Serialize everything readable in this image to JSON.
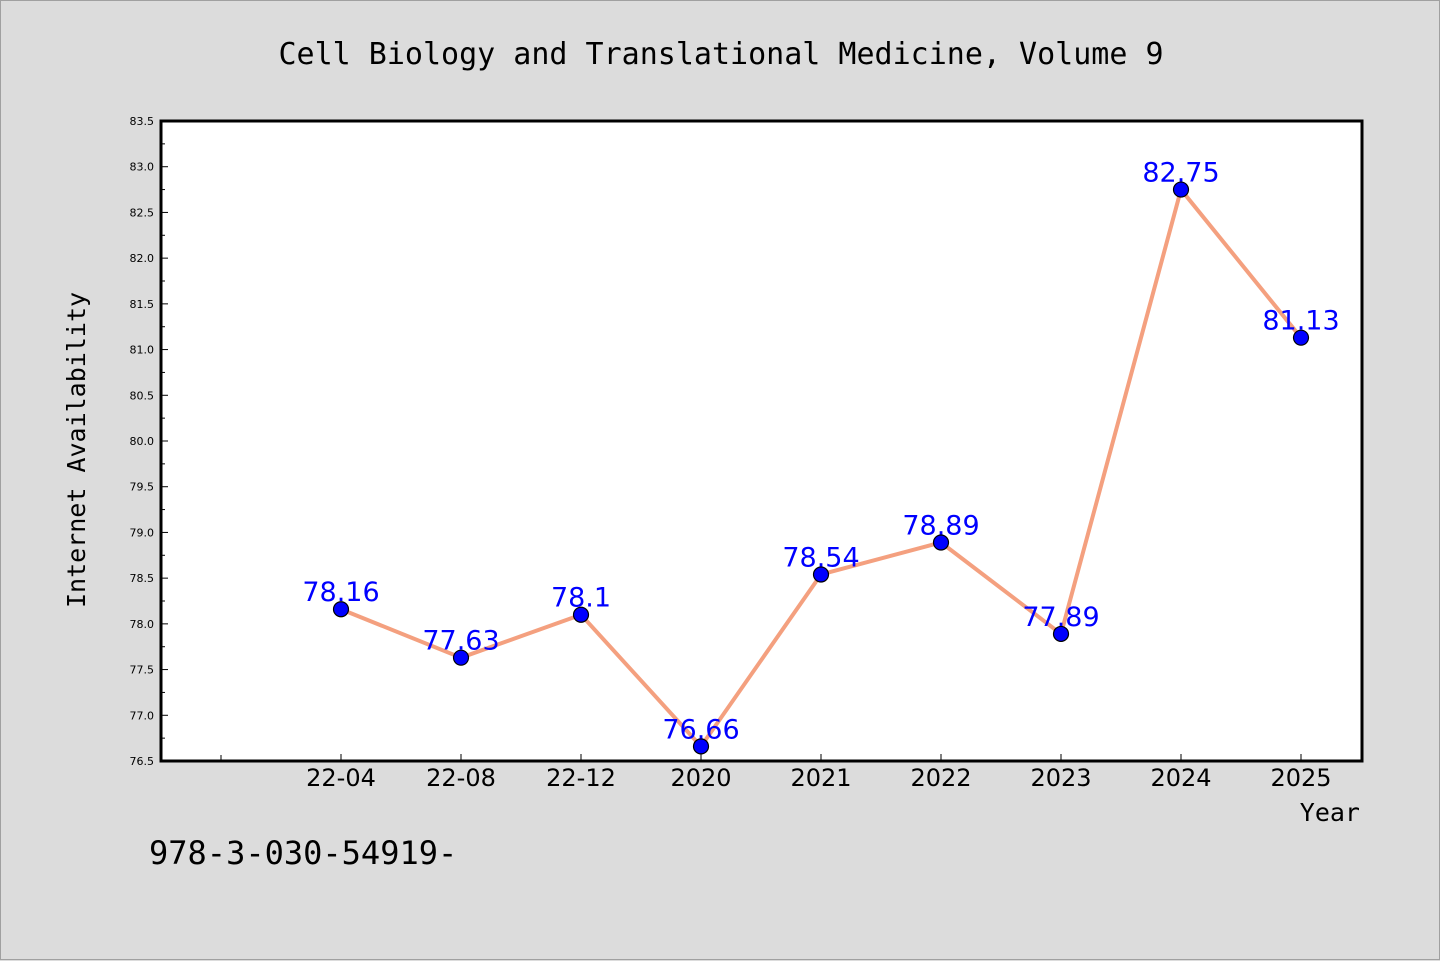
{
  "chart_data": {
    "type": "line",
    "title": "Cell Biology and Translational Medicine, Volume 9",
    "xlabel": "Year",
    "ylabel": "Internet Availability",
    "categories": [
      "22-04",
      "22-08",
      "22-12",
      "2020",
      "2021",
      "2022",
      "2023",
      "2024",
      "2025"
    ],
    "series": [
      {
        "values": [
          78.16,
          77.63,
          78.1,
          76.66,
          78.54,
          78.89,
          77.89,
          82.75,
          81.13
        ]
      }
    ],
    "data_labels": [
      "78.16",
      "77.63",
      "78.1",
      "76.66",
      "78.54",
      "78.89",
      "77.89",
      "82.75",
      "81.13"
    ],
    "ylim": [
      76.5,
      83.5
    ],
    "yticks": [
      "76.5",
      "77.0",
      "77.5",
      "78.0",
      "78.5",
      "79.0",
      "79.5",
      "80.0",
      "80.5",
      "81.0",
      "81.5",
      "82.0",
      "82.5",
      "83.0",
      "83.5"
    ],
    "grid": false,
    "legend": "none",
    "line_color": "#f4a07f",
    "marker_color": "#0000ff",
    "label_color": "#0000ff"
  },
  "footer_text": "978-3-030-54919-"
}
